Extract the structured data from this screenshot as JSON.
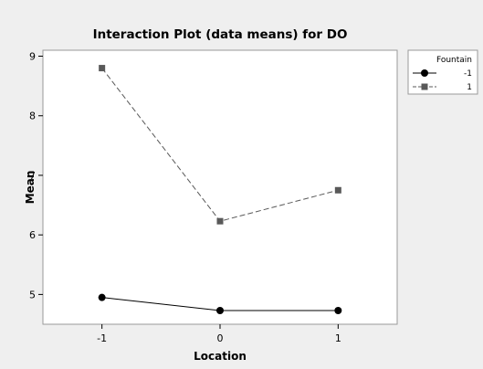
{
  "chart_data": {
    "type": "line",
    "title": "Interaction Plot (data means) for DO",
    "xlabel": "Location",
    "ylabel": "Mean",
    "x": [
      "-1",
      "0",
      "1"
    ],
    "xlim": [
      -1.5,
      1.5
    ],
    "ylim": [
      4.5,
      9.1
    ],
    "yticks": [
      5,
      6,
      7,
      8,
      9
    ],
    "grid": false,
    "legend": {
      "title": "Fountain",
      "placement": "right"
    },
    "series": [
      {
        "name": "-1",
        "values": [
          4.95,
          4.73,
          4.73
        ],
        "color": "#000000",
        "marker": "circle",
        "line": "solid"
      },
      {
        "name": "1",
        "values": [
          8.8,
          6.23,
          6.75
        ],
        "color": "#595959",
        "marker": "square",
        "line": "dashed"
      }
    ]
  }
}
